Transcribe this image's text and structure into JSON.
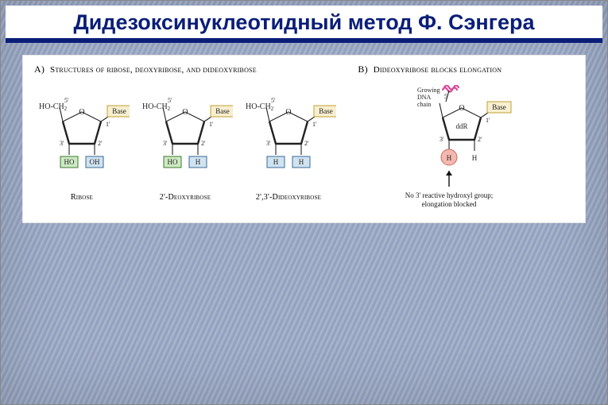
{
  "title": {
    "text": "Дидезоксинуклеотидный метод Ф. Сэнгера",
    "color": "#0a1e78",
    "underline_color": "#0a1e78"
  },
  "panel_a": {
    "lead": "A)",
    "heading": "Structures of ribose, deoxyribose, and dideoxyribose",
    "sugars": [
      {
        "name": "Ribose",
        "left_box": {
          "label": "HO",
          "bg": "#cdeac3",
          "border": "#3c7a2d"
        },
        "right_box": {
          "label": "OH",
          "bg": "#cfe3f0",
          "border": "#3a6a94"
        }
      },
      {
        "name": "2'-Deoxyribose",
        "left_box": {
          "label": "HO",
          "bg": "#cdeac3",
          "border": "#3c7a2d"
        },
        "right_box": {
          "label": "H",
          "bg": "#cfe3f0",
          "border": "#3a6a94"
        }
      },
      {
        "name": "2',3'-Dideoxyribose",
        "left_box": {
          "label": "H",
          "bg": "#cfe3f0",
          "border": "#3a6a94"
        },
        "right_box": {
          "label": "H",
          "bg": "#cfe3f0",
          "border": "#3a6a94"
        }
      }
    ],
    "common": {
      "base_label": "Base",
      "base_bg": "#f7efcf",
      "base_border": "#c0a030",
      "hoch2_label": "HO-CH",
      "hoch2_sub": "2",
      "five_prime": "5'",
      "one_prime": "1'",
      "two_prime": "2'",
      "three_prime": "3'",
      "ring_stroke": "#222222",
      "ring_stroke_width": 1.1,
      "o_label": "O"
    }
  },
  "panel_b": {
    "lead": "B)",
    "heading": "Dideoxyribose blocks elongation",
    "growing_label": "Growing\nDNA\nchain",
    "circle": {
      "label": "H",
      "bg": "#f4b8b0",
      "border": "#c96a5e"
    },
    "right_h": {
      "label": "H",
      "bg": "transparent",
      "border": "transparent"
    },
    "ddr_label": "ddR",
    "caption": "No 3' reactive hydroxyl group;\nelongation blocked",
    "wave_color": "#d94a9a",
    "arrow_color": "#111111"
  },
  "colors": {
    "text": "#111111",
    "heading_text": "#111111"
  }
}
